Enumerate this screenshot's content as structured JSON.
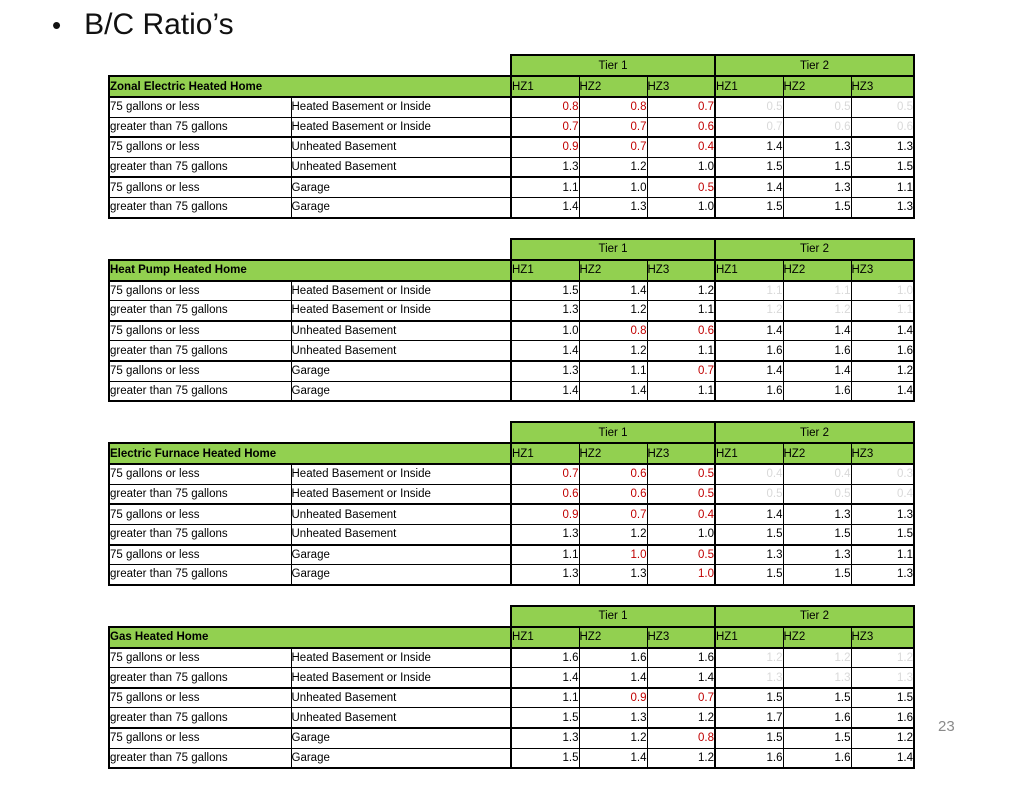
{
  "slide": {
    "bullet": "•",
    "title": "B/C Ratio’s",
    "page_number": "23"
  },
  "colors": {
    "header_green": "#92D050",
    "ratio_red": "#C00000",
    "faded_gray": "#D9D9D9",
    "page_number_gray": "#8a8a8a"
  },
  "table_header": {
    "tier1": "Tier 1",
    "tier2": "Tier 2",
    "hz_columns": [
      "HZ1",
      "HZ2",
      "HZ3"
    ]
  },
  "tables": [
    {
      "title": "Zonal Electric Heated Home",
      "rows": [
        {
          "size": "75 gallons or less",
          "location": "Heated Basement or Inside",
          "cells": [
            [
              "0.8",
              "red"
            ],
            [
              "0.8",
              "red"
            ],
            [
              "0.7",
              "red"
            ],
            [
              "0.5",
              "gray"
            ],
            [
              "0.5",
              "gray"
            ],
            [
              "0.5",
              "gray"
            ]
          ]
        },
        {
          "size": "greater than 75 gallons",
          "location": "Heated Basement or Inside",
          "cells": [
            [
              "0.7",
              "red"
            ],
            [
              "0.7",
              "red"
            ],
            [
              "0.6",
              "red"
            ],
            [
              "0.7",
              "gray"
            ],
            [
              "0.6",
              "gray"
            ],
            [
              "0.6",
              "gray"
            ]
          ]
        },
        {
          "size": "75 gallons or less",
          "location": "Unheated Basement",
          "cells": [
            [
              "0.9",
              "red"
            ],
            [
              "0.7",
              "red"
            ],
            [
              "0.4",
              "red"
            ],
            [
              "1.4",
              ""
            ],
            [
              "1.3",
              ""
            ],
            [
              "1.3",
              ""
            ]
          ]
        },
        {
          "size": "greater than 75 gallons",
          "location": "Unheated Basement",
          "cells": [
            [
              "1.3",
              ""
            ],
            [
              "1.2",
              ""
            ],
            [
              "1.0",
              ""
            ],
            [
              "1.5",
              ""
            ],
            [
              "1.5",
              ""
            ],
            [
              "1.5",
              ""
            ]
          ]
        },
        {
          "size": "75 gallons or less",
          "location": "Garage",
          "cells": [
            [
              "1.1",
              ""
            ],
            [
              "1.0",
              ""
            ],
            [
              "0.5",
              "red"
            ],
            [
              "1.4",
              ""
            ],
            [
              "1.3",
              ""
            ],
            [
              "1.1",
              ""
            ]
          ]
        },
        {
          "size": "greater than 75 gallons",
          "location": "Garage",
          "cells": [
            [
              "1.4",
              ""
            ],
            [
              "1.3",
              ""
            ],
            [
              "1.0",
              ""
            ],
            [
              "1.5",
              ""
            ],
            [
              "1.5",
              ""
            ],
            [
              "1.3",
              ""
            ]
          ]
        }
      ]
    },
    {
      "title": "Heat Pump Heated Home",
      "rows": [
        {
          "size": "75 gallons or less",
          "location": "Heated Basement or Inside",
          "cells": [
            [
              "1.5",
              ""
            ],
            [
              "1.4",
              ""
            ],
            [
              "1.2",
              ""
            ],
            [
              "1.1",
              "gray"
            ],
            [
              "1.1",
              "gray"
            ],
            [
              "1.0",
              "gray"
            ]
          ]
        },
        {
          "size": "greater than 75 gallons",
          "location": "Heated Basement or Inside",
          "cells": [
            [
              "1.3",
              ""
            ],
            [
              "1.2",
              ""
            ],
            [
              "1.1",
              ""
            ],
            [
              "1.2",
              "gray"
            ],
            [
              "1.2",
              "gray"
            ],
            [
              "1.1",
              "gray"
            ]
          ]
        },
        {
          "size": "75 gallons or less",
          "location": "Unheated Basement",
          "cells": [
            [
              "1.0",
              ""
            ],
            [
              "0.8",
              "red"
            ],
            [
              "0.6",
              "red"
            ],
            [
              "1.4",
              ""
            ],
            [
              "1.4",
              ""
            ],
            [
              "1.4",
              ""
            ]
          ]
        },
        {
          "size": "greater than 75 gallons",
          "location": "Unheated Basement",
          "cells": [
            [
              "1.4",
              ""
            ],
            [
              "1.2",
              ""
            ],
            [
              "1.1",
              ""
            ],
            [
              "1.6",
              ""
            ],
            [
              "1.6",
              ""
            ],
            [
              "1.6",
              ""
            ]
          ]
        },
        {
          "size": "75 gallons or less",
          "location": "Garage",
          "cells": [
            [
              "1.3",
              ""
            ],
            [
              "1.1",
              ""
            ],
            [
              "0.7",
              "red"
            ],
            [
              "1.4",
              ""
            ],
            [
              "1.4",
              ""
            ],
            [
              "1.2",
              ""
            ]
          ]
        },
        {
          "size": "greater than 75 gallons",
          "location": "Garage",
          "cells": [
            [
              "1.4",
              ""
            ],
            [
              "1.4",
              ""
            ],
            [
              "1.1",
              ""
            ],
            [
              "1.6",
              ""
            ],
            [
              "1.6",
              ""
            ],
            [
              "1.4",
              ""
            ]
          ]
        }
      ]
    },
    {
      "title": "Electric Furnace Heated Home",
      "rows": [
        {
          "size": "75 gallons or less",
          "location": "Heated Basement or Inside",
          "cells": [
            [
              "0.7",
              "red"
            ],
            [
              "0.6",
              "red"
            ],
            [
              "0.5",
              "red"
            ],
            [
              "0.4",
              "gray"
            ],
            [
              "0.4",
              "gray"
            ],
            [
              "0.3",
              "gray"
            ]
          ]
        },
        {
          "size": "greater than 75 gallons",
          "location": "Heated Basement or Inside",
          "cells": [
            [
              "0.6",
              "red"
            ],
            [
              "0.6",
              "red"
            ],
            [
              "0.5",
              "red"
            ],
            [
              "0.5",
              "gray"
            ],
            [
              "0.5",
              "gray"
            ],
            [
              "0.4",
              "gray"
            ]
          ]
        },
        {
          "size": "75 gallons or less",
          "location": "Unheated Basement",
          "cells": [
            [
              "0.9",
              "red"
            ],
            [
              "0.7",
              "red"
            ],
            [
              "0.4",
              "red"
            ],
            [
              "1.4",
              ""
            ],
            [
              "1.3",
              ""
            ],
            [
              "1.3",
              ""
            ]
          ]
        },
        {
          "size": "greater than 75 gallons",
          "location": "Unheated Basement",
          "cells": [
            [
              "1.3",
              ""
            ],
            [
              "1.2",
              ""
            ],
            [
              "1.0",
              ""
            ],
            [
              "1.5",
              ""
            ],
            [
              "1.5",
              ""
            ],
            [
              "1.5",
              ""
            ]
          ]
        },
        {
          "size": "75 gallons or less",
          "location": "Garage",
          "cells": [
            [
              "1.1",
              ""
            ],
            [
              "1.0",
              "red"
            ],
            [
              "0.5",
              "red"
            ],
            [
              "1.3",
              ""
            ],
            [
              "1.3",
              ""
            ],
            [
              "1.1",
              ""
            ]
          ]
        },
        {
          "size": "greater than 75 gallons",
          "location": "Garage",
          "cells": [
            [
              "1.3",
              ""
            ],
            [
              "1.3",
              ""
            ],
            [
              "1.0",
              "red"
            ],
            [
              "1.5",
              ""
            ],
            [
              "1.5",
              ""
            ],
            [
              "1.3",
              ""
            ]
          ]
        }
      ]
    },
    {
      "title": "Gas Heated Home",
      "rows": [
        {
          "size": "75 gallons or less",
          "location": "Heated Basement or Inside",
          "cells": [
            [
              "1.6",
              ""
            ],
            [
              "1.6",
              ""
            ],
            [
              "1.6",
              ""
            ],
            [
              "1.2",
              "gray"
            ],
            [
              "1.2",
              "gray"
            ],
            [
              "1.2",
              "gray"
            ]
          ]
        },
        {
          "size": "greater than 75 gallons",
          "location": "Heated Basement or Inside",
          "cells": [
            [
              "1.4",
              ""
            ],
            [
              "1.4",
              ""
            ],
            [
              "1.4",
              ""
            ],
            [
              "1.3",
              "gray"
            ],
            [
              "1.3",
              "gray"
            ],
            [
              "1.3",
              "gray"
            ]
          ]
        },
        {
          "size": "75 gallons or less",
          "location": "Unheated Basement",
          "cells": [
            [
              "1.1",
              ""
            ],
            [
              "0.9",
              "red"
            ],
            [
              "0.7",
              "red"
            ],
            [
              "1.5",
              ""
            ],
            [
              "1.5",
              ""
            ],
            [
              "1.5",
              ""
            ]
          ]
        },
        {
          "size": "greater than 75 gallons",
          "location": "Unheated Basement",
          "cells": [
            [
              "1.5",
              ""
            ],
            [
              "1.3",
              ""
            ],
            [
              "1.2",
              ""
            ],
            [
              "1.7",
              ""
            ],
            [
              "1.6",
              ""
            ],
            [
              "1.6",
              ""
            ]
          ]
        },
        {
          "size": "75 gallons or less",
          "location": "Garage",
          "cells": [
            [
              "1.3",
              ""
            ],
            [
              "1.2",
              ""
            ],
            [
              "0.8",
              "red"
            ],
            [
              "1.5",
              ""
            ],
            [
              "1.5",
              ""
            ],
            [
              "1.2",
              ""
            ]
          ]
        },
        {
          "size": "greater than 75 gallons",
          "location": "Garage",
          "cells": [
            [
              "1.5",
              ""
            ],
            [
              "1.4",
              ""
            ],
            [
              "1.2",
              ""
            ],
            [
              "1.6",
              ""
            ],
            [
              "1.6",
              ""
            ],
            [
              "1.4",
              ""
            ]
          ]
        }
      ]
    }
  ]
}
